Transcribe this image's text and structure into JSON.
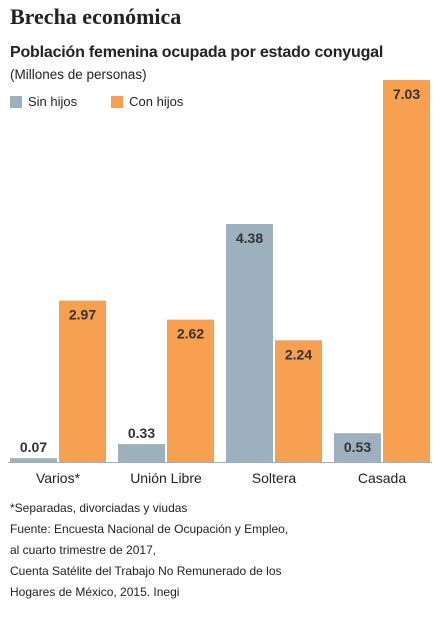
{
  "header": {
    "headline": "Brecha económica",
    "title": "Población femenina ocupada por estado conyugal",
    "subtitle": "(Millones de personas)"
  },
  "colors": {
    "sin_hijos": "#9db0bd",
    "con_hijos": "#f7a04f",
    "axis": "#9db0bd"
  },
  "chart_data": {
    "type": "bar",
    "categories": [
      "Varios*",
      "Unión Libre",
      "Soltera",
      "Casada"
    ],
    "series": [
      {
        "name": "Sin hijos",
        "values": [
          0.07,
          0.33,
          4.38,
          0.53
        ]
      },
      {
        "name": "Con hijos",
        "values": [
          2.97,
          2.62,
          2.24,
          7.03
        ]
      }
    ],
    "value_labels": {
      "sin_hijos": [
        "0.07",
        "0.33",
        "4.38",
        "0.53"
      ],
      "con_hijos": [
        "2.97",
        "2.62",
        "2.24",
        "7.03"
      ]
    },
    "ylim": [
      0,
      7.03
    ],
    "grid": false,
    "legend_position": "top-left"
  },
  "notes": [
    "*Separadas, divorciadas y viudas",
    "Fuente: Encuesta Nacional de Ocupación y Empleo,",
    "al cuarto trimestre de 2017,",
    "Cuenta Satélite del Trabajo No Remunerado de los",
    "Hogares de México, 2015. Inegi"
  ]
}
